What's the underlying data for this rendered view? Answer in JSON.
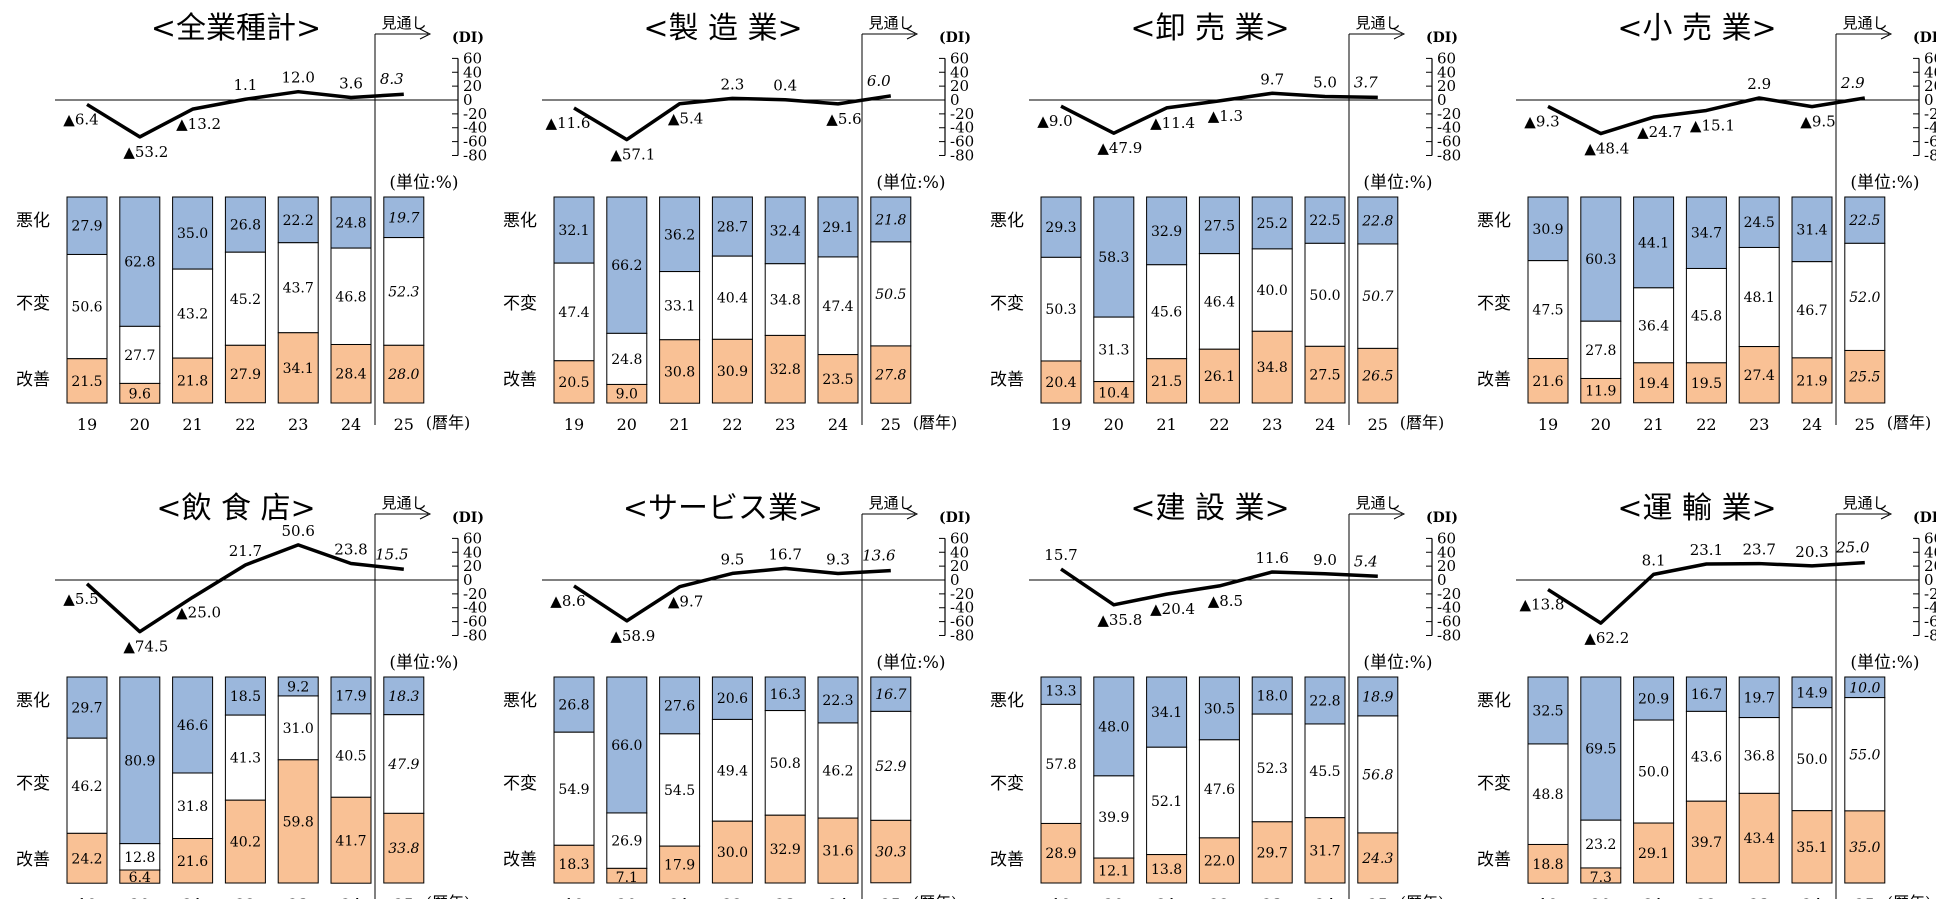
{
  "common": {
    "di_label": "(DI)",
    "forecast_label": "見通し",
    "unit_label": "(単位:%)",
    "x_unit": "(暦年)",
    "row_labels": [
      "悪化",
      "不変",
      "改善"
    ],
    "years": [
      "19",
      "20",
      "21",
      "22",
      "23",
      "24",
      "25"
    ],
    "di_ticks": [
      "60",
      "40",
      "20",
      "0",
      "-20",
      "-40",
      "-60",
      "-80"
    ],
    "colors": {
      "worse": "#9bb7dc",
      "same": "#ffffff",
      "better": "#f9c195",
      "line": "#000000"
    }
  },
  "chart_data": [
    {
      "type": "bar",
      "title": "<全業種計>",
      "di": [
        -6.4,
        -53.2,
        -13.2,
        1.1,
        12.0,
        3.6,
        8.3
      ],
      "di_labels": [
        "▲6.4",
        "▲53.2",
        "▲13.2",
        "1.1",
        "12.0",
        "3.6",
        "8.3"
      ],
      "series": [
        {
          "name": "悪化",
          "values": [
            27.9,
            62.8,
            35.0,
            26.8,
            22.2,
            24.8,
            19.7
          ]
        },
        {
          "name": "不変",
          "values": [
            50.6,
            27.7,
            43.2,
            45.2,
            43.7,
            46.8,
            52.3
          ]
        },
        {
          "name": "改善",
          "values": [
            21.5,
            9.6,
            21.8,
            27.9,
            34.1,
            28.4,
            28.0
          ]
        }
      ]
    },
    {
      "type": "bar",
      "title": "<製 造 業>",
      "di": [
        -11.6,
        -57.1,
        -5.4,
        2.3,
        0.4,
        -5.6,
        6.0
      ],
      "di_labels": [
        "▲11.6",
        "▲57.1",
        "▲5.4",
        "2.3",
        "0.4",
        "▲5.6",
        "6.0"
      ],
      "series": [
        {
          "name": "悪化",
          "values": [
            32.1,
            66.2,
            36.2,
            28.7,
            32.4,
            29.1,
            21.8
          ]
        },
        {
          "name": "不変",
          "values": [
            47.4,
            24.8,
            33.1,
            40.4,
            34.8,
            47.4,
            50.5
          ]
        },
        {
          "name": "改善",
          "values": [
            20.5,
            9.0,
            30.8,
            30.9,
            32.8,
            23.5,
            27.8
          ]
        }
      ]
    },
    {
      "type": "bar",
      "title": "<卸 売 業>",
      "di": [
        -9.0,
        -47.9,
        -11.4,
        -1.3,
        9.7,
        5.0,
        3.7
      ],
      "di_labels": [
        "▲9.0",
        "▲47.9",
        "▲11.4",
        "▲1.3",
        "9.7",
        "5.0",
        "3.7"
      ],
      "series": [
        {
          "name": "悪化",
          "values": [
            29.3,
            58.3,
            32.9,
            27.5,
            25.2,
            22.5,
            22.8
          ]
        },
        {
          "name": "不変",
          "values": [
            50.3,
            31.3,
            45.6,
            46.4,
            40.0,
            50.0,
            50.7
          ]
        },
        {
          "name": "改善",
          "values": [
            20.4,
            10.4,
            21.5,
            26.1,
            34.8,
            27.5,
            26.5
          ]
        }
      ]
    },
    {
      "type": "bar",
      "title": "<小 売 業>",
      "di": [
        -9.3,
        -48.4,
        -24.7,
        -15.1,
        2.9,
        -9.5,
        2.9
      ],
      "di_labels": [
        "▲9.3",
        "▲48.4",
        "▲24.7",
        "▲15.1",
        "2.9",
        "▲9.5",
        "2.9"
      ],
      "series": [
        {
          "name": "悪化",
          "values": [
            30.9,
            60.3,
            44.1,
            34.7,
            24.5,
            31.4,
            22.5
          ]
        },
        {
          "name": "不変",
          "values": [
            47.5,
            27.8,
            36.4,
            45.8,
            48.1,
            46.7,
            52.0
          ]
        },
        {
          "name": "改善",
          "values": [
            21.6,
            11.9,
            19.4,
            19.5,
            27.4,
            21.9,
            25.5
          ]
        }
      ]
    },
    {
      "type": "bar",
      "title": "<飲 食 店>",
      "di": [
        -5.5,
        -74.5,
        -25.0,
        21.7,
        50.6,
        23.8,
        15.5
      ],
      "di_labels": [
        "▲5.5",
        "▲74.5",
        "▲25.0",
        "21.7",
        "50.6",
        "23.8",
        "15.5"
      ],
      "series": [
        {
          "name": "悪化",
          "values": [
            29.7,
            80.9,
            46.6,
            18.5,
            9.2,
            17.9,
            18.3
          ]
        },
        {
          "name": "不変",
          "values": [
            46.2,
            12.8,
            31.8,
            41.3,
            31.0,
            40.5,
            47.9
          ]
        },
        {
          "name": "改善",
          "values": [
            24.2,
            6.4,
            21.6,
            40.2,
            59.8,
            41.7,
            33.8
          ]
        }
      ]
    },
    {
      "type": "bar",
      "title": "<サービス業>",
      "di": [
        -8.6,
        -58.9,
        -9.7,
        9.5,
        16.7,
        9.3,
        13.6
      ],
      "di_labels": [
        "▲8.6",
        "▲58.9",
        "▲9.7",
        "9.5",
        "16.7",
        "9.3",
        "13.6"
      ],
      "series": [
        {
          "name": "悪化",
          "values": [
            26.8,
            66.0,
            27.6,
            20.6,
            16.3,
            22.3,
            16.7
          ]
        },
        {
          "name": "不変",
          "values": [
            54.9,
            26.9,
            54.5,
            49.4,
            50.8,
            46.2,
            52.9
          ]
        },
        {
          "name": "改善",
          "values": [
            18.3,
            7.1,
            17.9,
            30.0,
            32.9,
            31.6,
            30.3
          ]
        }
      ]
    },
    {
      "type": "bar",
      "title": "<建 設 業>",
      "di": [
        15.7,
        -35.8,
        -20.4,
        -8.5,
        11.6,
        9.0,
        5.4
      ],
      "di_labels": [
        "15.7",
        "▲35.8",
        "▲20.4",
        "▲8.5",
        "11.6",
        "9.0",
        "5.4"
      ],
      "series": [
        {
          "name": "悪化",
          "values": [
            13.3,
            48.0,
            34.1,
            30.5,
            18.0,
            22.8,
            18.9
          ]
        },
        {
          "name": "不変",
          "values": [
            57.8,
            39.9,
            52.1,
            47.6,
            52.3,
            45.5,
            56.8
          ]
        },
        {
          "name": "改善",
          "values": [
            28.9,
            12.1,
            13.8,
            22.0,
            29.7,
            31.7,
            24.3
          ]
        }
      ]
    },
    {
      "type": "bar",
      "title": "<運 輸 業>",
      "di": [
        -13.8,
        -62.2,
        8.1,
        23.1,
        23.7,
        20.3,
        25.0
      ],
      "di_labels": [
        "▲13.8",
        "▲62.2",
        "8.1",
        "23.1",
        "23.7",
        "20.3",
        "25.0"
      ],
      "series": [
        {
          "name": "悪化",
          "values": [
            32.5,
            69.5,
            20.9,
            16.7,
            19.7,
            14.9,
            10.0
          ]
        },
        {
          "name": "不変",
          "values": [
            48.8,
            23.2,
            50.0,
            43.6,
            36.8,
            50.0,
            55.0
          ]
        },
        {
          "name": "改善",
          "values": [
            18.8,
            7.3,
            29.1,
            39.7,
            43.4,
            35.1,
            35.0
          ]
        }
      ]
    }
  ]
}
